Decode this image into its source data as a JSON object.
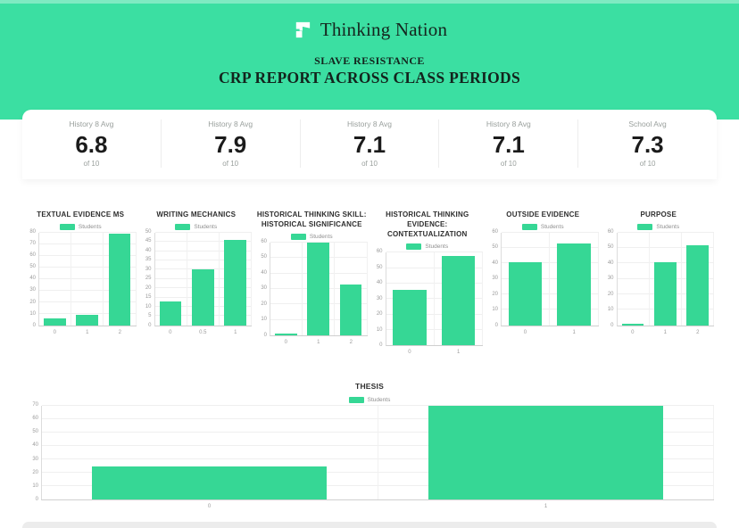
{
  "colors": {
    "accent": "#3bdfa2",
    "bar": "#36d795"
  },
  "header": {
    "logo_text": "Thinking Nation",
    "subtitle": "SLAVE RESISTANCE",
    "title": "CRP REPORT ACROSS CLASS PERIODS"
  },
  "stats": [
    {
      "label": "History 8 Avg",
      "value": "6.8",
      "of": "of 10"
    },
    {
      "label": "History 8 Avg",
      "value": "7.9",
      "of": "of 10"
    },
    {
      "label": "History 8 Avg",
      "value": "7.1",
      "of": "of 10"
    },
    {
      "label": "History 8 Avg",
      "value": "7.1",
      "of": "of 10"
    },
    {
      "label": "School Avg",
      "value": "7.3",
      "of": "of 10"
    }
  ],
  "chart_data": [
    {
      "type": "bar",
      "title": "TEXTUAL EVIDENCE MS",
      "legend": "Students",
      "categories": [
        "0",
        "1",
        "2"
      ],
      "values": [
        6,
        9,
        79
      ],
      "ylim": [
        0,
        80
      ],
      "ystep": 10,
      "xlabel": "",
      "ylabel": "",
      "grid": true,
      "legend_position": "top"
    },
    {
      "type": "bar",
      "title": "WRITING MECHANICS",
      "legend": "Students",
      "categories": [
        "0",
        "0.5",
        "1"
      ],
      "values": [
        13,
        30,
        46
      ],
      "ylim": [
        0,
        50
      ],
      "ystep": 5,
      "xlabel": "",
      "ylabel": "",
      "grid": true,
      "legend_position": "top"
    },
    {
      "type": "bar",
      "title": "HISTORICAL THINKING SKILL: HISTORICAL SIGNIFICANCE",
      "legend": "Students",
      "categories": [
        "0",
        "1",
        "2"
      ],
      "values": [
        1,
        60,
        33
      ],
      "ylim": [
        0,
        60
      ],
      "ystep": 10,
      "xlabel": "",
      "ylabel": "",
      "grid": true,
      "legend_position": "top"
    },
    {
      "type": "bar",
      "title": "HISTORICAL THINKING EVIDENCE: CONTEXTUALIZATION",
      "legend": "Students",
      "categories": [
        "0",
        "1"
      ],
      "values": [
        36,
        58
      ],
      "ylim": [
        0,
        60
      ],
      "ystep": 10,
      "xlabel": "",
      "ylabel": "",
      "grid": true,
      "legend_position": "top"
    },
    {
      "type": "bar",
      "title": "OUTSIDE EVIDENCE",
      "legend": "Students",
      "categories": [
        "0",
        "1"
      ],
      "values": [
        41,
        53
      ],
      "ylim": [
        0,
        60
      ],
      "ystep": 10,
      "xlabel": "",
      "ylabel": "",
      "grid": true,
      "legend_position": "top"
    },
    {
      "type": "bar",
      "title": "PURPOSE",
      "legend": "Students",
      "categories": [
        "0",
        "1",
        "2"
      ],
      "values": [
        1,
        41,
        52
      ],
      "ylim": [
        0,
        60
      ],
      "ystep": 10,
      "xlabel": "",
      "ylabel": "",
      "grid": true,
      "legend_position": "top"
    },
    {
      "type": "bar",
      "title": "THESIS",
      "legend": "Students",
      "categories": [
        "0",
        "1"
      ],
      "values": [
        25,
        70
      ],
      "ylim": [
        0,
        70
      ],
      "ystep": 10,
      "xlabel": "",
      "ylabel": "",
      "grid": true,
      "legend_position": "top"
    }
  ]
}
